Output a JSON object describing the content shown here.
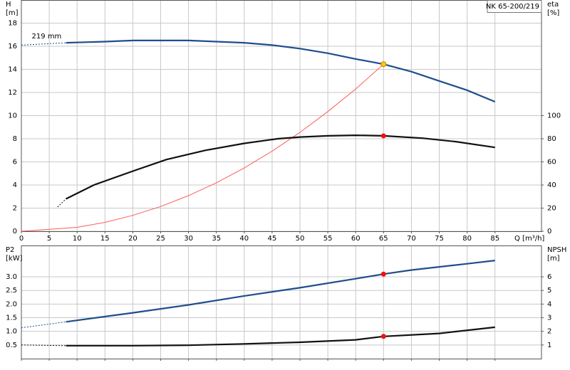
{
  "chart_data": [
    {
      "type": "line",
      "title": "NK 65-200/219",
      "ylabel": "H",
      "yunit": "[m]",
      "y2label": "eta",
      "y2unit": "[%]",
      "xlabel": "Q [m³/h]",
      "xlim": [
        0,
        93.35
      ],
      "xticks": [
        0,
        5,
        10,
        15,
        20,
        25,
        30,
        35,
        40,
        45,
        50,
        55,
        60,
        65,
        70,
        75,
        80,
        85
      ],
      "ylim": [
        0,
        20
      ],
      "yticks": [
        0,
        2,
        4,
        6,
        8,
        10,
        12,
        14,
        16,
        18
      ],
      "y2lim": [
        0,
        200
      ],
      "y2ticks": [
        0,
        20,
        40,
        60,
        80,
        100
      ],
      "grid": true,
      "show_xtick_labels": true,
      "series": [
        {
          "color": "#1f4e8c",
          "dash": true,
          "x": [
            0,
            8
          ],
          "values": [
            16.1,
            16.3
          ]
        },
        {
          "name": "219 mm",
          "color": "#1f4e8c",
          "x": [
            8,
            15,
            20,
            25,
            30,
            35,
            40,
            45,
            50,
            55,
            60,
            65,
            70,
            75,
            80,
            85
          ],
          "values": [
            16.3,
            16.4,
            16.5,
            16.5,
            16.5,
            16.4,
            16.3,
            16.1,
            15.8,
            15.4,
            14.9,
            14.45,
            13.8,
            13.0,
            12.2,
            11.2
          ]
        },
        {
          "color": "#ff5a5a",
          "thin": true,
          "x": [
            0,
            10,
            15,
            20,
            25,
            30,
            35,
            40,
            45,
            50,
            55,
            60,
            65
          ],
          "values": [
            0,
            0.34,
            0.77,
            1.37,
            2.14,
            3.08,
            4.19,
            5.47,
            6.93,
            8.55,
            10.35,
            12.3,
            14.45
          ]
        },
        {
          "color": "#111111",
          "dash": true,
          "axis": "y2",
          "x": [
            6.5,
            8
          ],
          "values": [
            21,
            28
          ]
        },
        {
          "color": "#111111",
          "axis": "y2",
          "x": [
            8,
            13,
            20,
            26,
            33,
            40,
            46,
            50,
            55,
            60,
            65,
            72,
            78,
            85
          ],
          "values": [
            28,
            40,
            52,
            62,
            70,
            76,
            80,
            81.5,
            82.5,
            83,
            82.5,
            80.5,
            77.5,
            72.5
          ]
        }
      ],
      "points": [
        {
          "color": "#ffcc00",
          "x": 65,
          "y": 14.45
        },
        {
          "color": "#ee1111",
          "axis": "y2",
          "x": 65,
          "y": 82.5
        }
      ]
    },
    {
      "type": "line",
      "ylabel": "P2",
      "yunit": "[kW]",
      "y2label": "NPSH",
      "y2unit": "[m]",
      "xlim": [
        0,
        93.35
      ],
      "xticks": [
        0,
        5,
        10,
        15,
        20,
        25,
        30,
        35,
        40,
        45,
        50,
        55,
        60,
        65,
        70,
        75,
        80,
        85
      ],
      "ylim": [
        0,
        4.15
      ],
      "yticks": [
        0.5,
        {
          "value": 1,
          "label": "1.0"
        },
        1.5,
        {
          "value": 2,
          "label": "2.0"
        },
        2.5,
        {
          "value": 3,
          "label": "3.0"
        }
      ],
      "y2lim": [
        0,
        8.3
      ],
      "y2ticks": [
        1,
        2,
        3,
        4,
        5,
        6
      ],
      "grid": true,
      "show_xtick_labels": false,
      "series": [
        {
          "color": "#1f4e8c",
          "dash": true,
          "x": [
            0,
            8
          ],
          "values": [
            1.13,
            1.35
          ]
        },
        {
          "color": "#1f4e8c",
          "x": [
            8,
            20,
            30,
            40,
            50,
            60,
            65,
            70,
            80,
            85
          ],
          "values": [
            1.35,
            1.68,
            1.97,
            2.3,
            2.6,
            2.93,
            3.1,
            3.25,
            3.48,
            3.6
          ]
        },
        {
          "color": "#111111",
          "dash": true,
          "axis": "y2",
          "x": [
            0,
            8
          ],
          "values": [
            1.0,
            0.95
          ]
        },
        {
          "color": "#111111",
          "axis": "y2",
          "x": [
            8,
            20,
            30,
            40,
            50,
            60,
            65,
            75,
            85
          ],
          "values": [
            0.95,
            0.95,
            0.98,
            1.08,
            1.2,
            1.38,
            1.63,
            1.85,
            2.3
          ]
        }
      ],
      "points": [
        {
          "color": "#ee1111",
          "x": 65,
          "y": 3.1
        },
        {
          "color": "#ee1111",
          "axis": "y2",
          "x": 65,
          "y": 1.63
        }
      ]
    }
  ]
}
